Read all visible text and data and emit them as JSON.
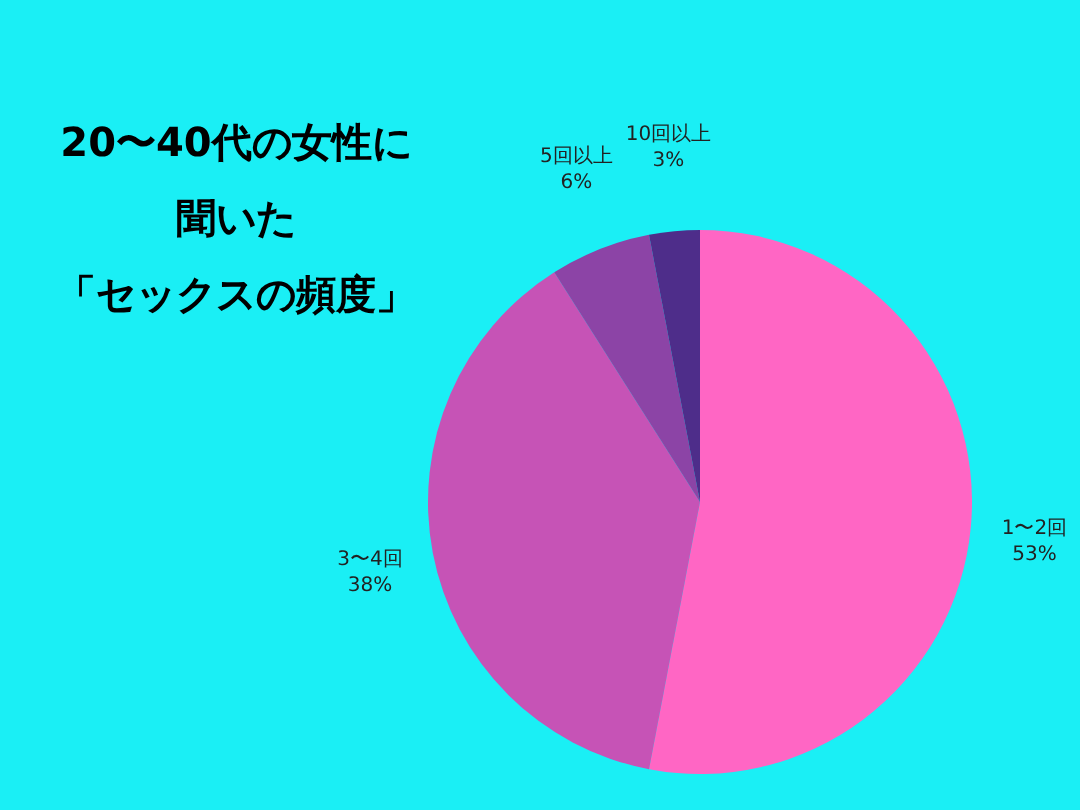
{
  "chart_data": {
    "type": "pie",
    "title": "20〜40代の女性に聞いた「セックスの頻度」",
    "categories": [
      "1〜2回",
      "3〜4回",
      "5回以上",
      "10回以上"
    ],
    "values": [
      53,
      38,
      6,
      3
    ],
    "colors": [
      "#ff66c4",
      "#c653b6",
      "#8c44a6",
      "#4e2d8a"
    ],
    "value_labels": [
      "53%",
      "38%",
      "6%",
      "3%"
    ]
  }
}
